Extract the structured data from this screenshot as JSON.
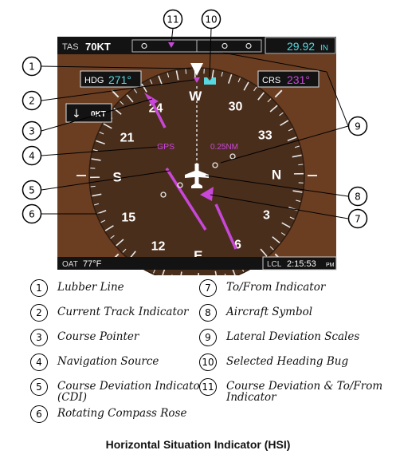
{
  "hsi": {
    "tas_label": "TAS",
    "tas_value": "70KT",
    "baro_value": "29.92",
    "baro_unit": "IN",
    "hdg_label": "HDG",
    "hdg_value": "271°",
    "crs_label": "CRS",
    "crs_value": "231°",
    "wind_arrow": "↓",
    "wind_value": "0KT",
    "nav_source": "GPS",
    "deviation_scale": "0.25NM",
    "oat_label": "OAT",
    "oat_value": "77°F",
    "lcl_label": "LCL",
    "lcl_value": "2:15:53",
    "lcl_suffix": "PM",
    "compass_labels": [
      "W",
      "30",
      "33",
      "N",
      "3",
      "6",
      "E",
      "12",
      "15",
      "S",
      "21",
      "24"
    ],
    "colors": {
      "bezel": "#131313",
      "background": "#6b3e22",
      "magenta": "#c847d8",
      "cyan": "#58d8e0",
      "white": "#ffffff"
    }
  },
  "callouts": [
    "1",
    "2",
    "3",
    "4",
    "5",
    "6",
    "7",
    "8",
    "9",
    "10",
    "11"
  ],
  "legend": [
    {
      "num": "1",
      "label": "Lubber Line"
    },
    {
      "num": "2",
      "label": "Current Track Indicator"
    },
    {
      "num": "3",
      "label": "Course Pointer"
    },
    {
      "num": "4",
      "label": "Navigation Source"
    },
    {
      "num": "5",
      "label": "Course Deviation Indicator\n(CDI)"
    },
    {
      "num": "6",
      "label": "Rotating Compass Rose"
    },
    {
      "num": "7",
      "label": "To/From Indicator"
    },
    {
      "num": "8",
      "label": "Aircraft Symbol"
    },
    {
      "num": "9",
      "label": "Lateral Deviation Scales"
    },
    {
      "num": "10",
      "label": "Selected Heading Bug"
    },
    {
      "num": "11",
      "label": "Course Deviation & To/From\nIndicator"
    }
  ],
  "caption": "Horizontal Situation Indicator (HSI)"
}
